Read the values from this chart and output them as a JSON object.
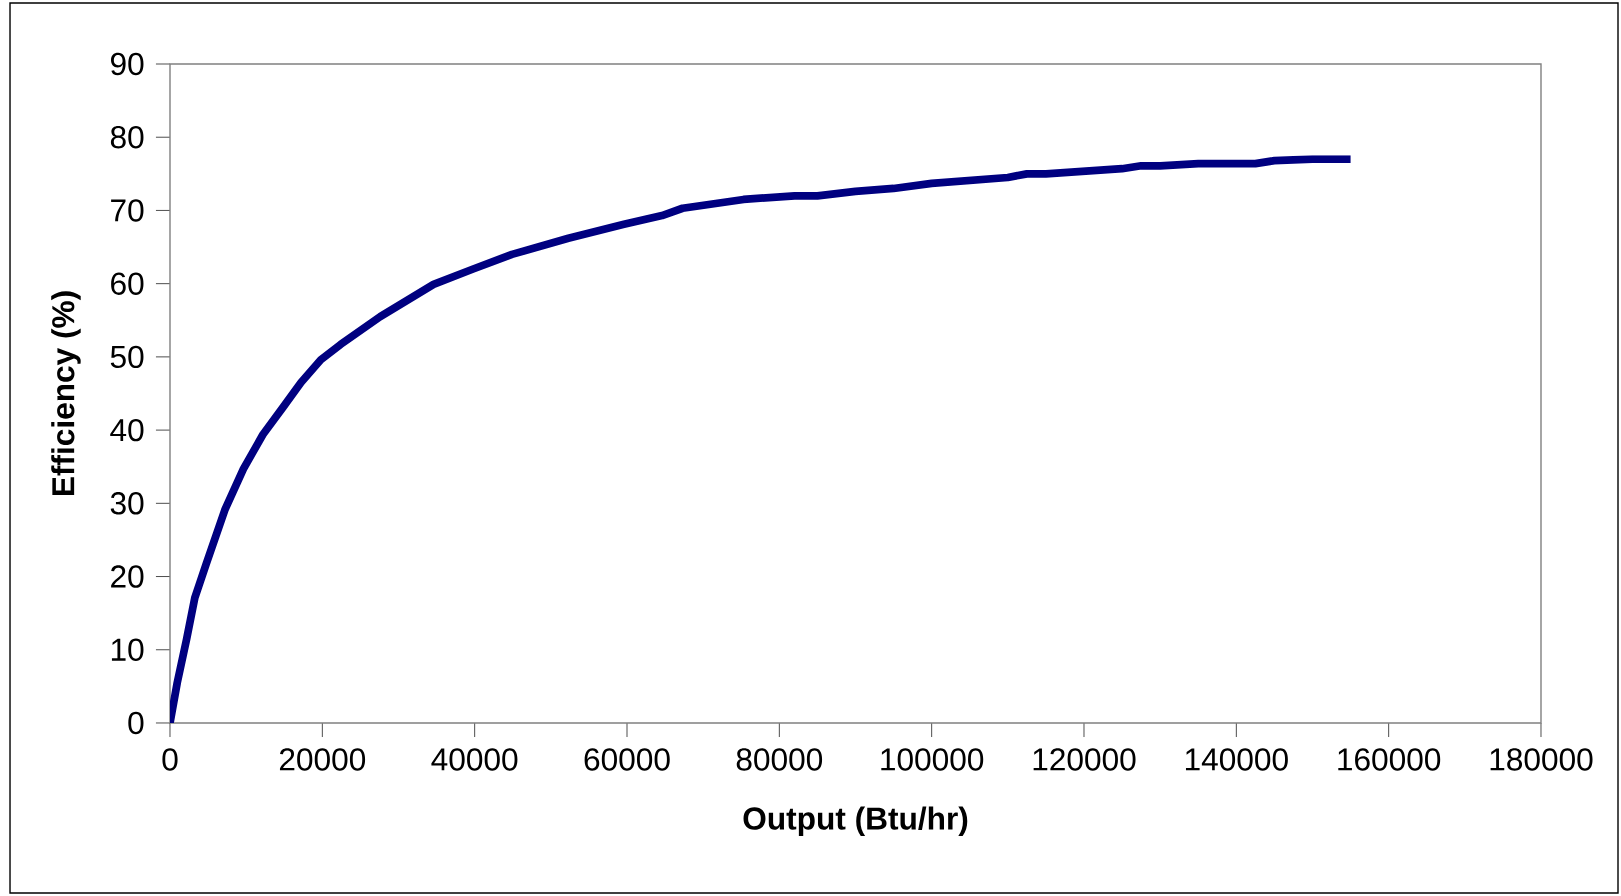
{
  "chart_data": {
    "type": "line",
    "xlabel": "Output (Btu/hr)",
    "ylabel": "Efficiency (%)",
    "color": "#000080",
    "line_style": "solid",
    "x": [
      0,
      950,
      2170,
      3260,
      4750,
      7200,
      9640,
      12200,
      14900,
      17200,
      19800,
      22400,
      27600,
      34600,
      39800,
      44900,
      52300,
      59600,
      64600,
      67300,
      75300,
      82000,
      85000,
      90000,
      95000,
      100000,
      110000,
      112500,
      115000,
      125000,
      127500,
      130000,
      135000,
      142500,
      145000,
      150000,
      155000
    ],
    "values": [
      0,
      5.5,
      11.4,
      17.1,
      21.7,
      29.1,
      34.7,
      39.4,
      43.2,
      46.5,
      49.6,
      51.7,
      55.5,
      59.9,
      62,
      64,
      66.2,
      68.1,
      69.3,
      70.3,
      71.5,
      72,
      72,
      72.6,
      73,
      73.7,
      74.5,
      75,
      75,
      75.7,
      76.1,
      76.1,
      76.4,
      76.4,
      76.8,
      77,
      77
    ],
    "xlim": [
      0,
      180000
    ],
    "ylim": [
      0,
      90
    ],
    "xticks": [
      0,
      20000,
      40000,
      60000,
      80000,
      100000,
      120000,
      140000,
      160000,
      180000
    ],
    "yticks": [
      0,
      10,
      20,
      30,
      40,
      50,
      60,
      70,
      80,
      90
    ]
  }
}
